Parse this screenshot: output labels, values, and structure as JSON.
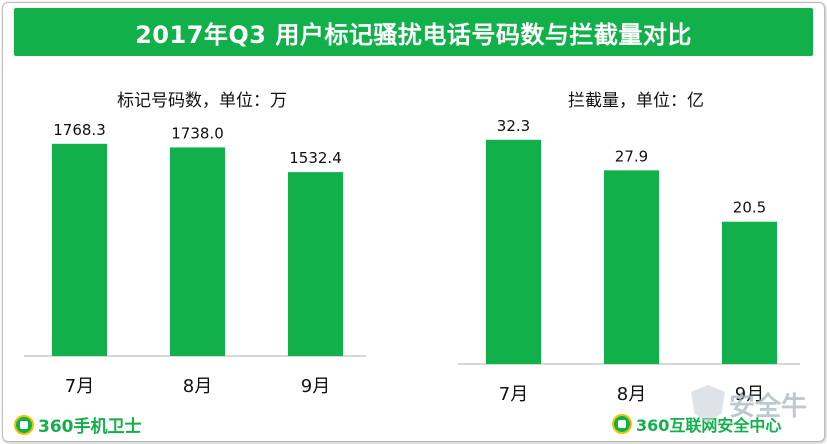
{
  "title": "2017年Q3  用户标记骚扰电话号码数与拦截量对比",
  "chart_data": [
    {
      "type": "bar",
      "title": "标记号码数，单位：万",
      "categories": [
        "7月",
        "8月",
        "9月"
      ],
      "values": [
        1768.3,
        1738.0,
        1532.4
      ],
      "value_labels": [
        "1768.3",
        "1738.0",
        "1532.4"
      ],
      "ylim": [
        0,
        1900
      ],
      "color": "#12b04a"
    },
    {
      "type": "bar",
      "title": "拦截量，单位：亿",
      "categories": [
        "7月",
        "8月",
        "9月"
      ],
      "values": [
        32.3,
        27.9,
        20.5
      ],
      "value_labels": [
        "32.3",
        "27.9",
        "20.5"
      ],
      "ylim": [
        0,
        34
      ],
      "color": "#12b04a"
    }
  ],
  "logos": {
    "left": "360手机卫士",
    "right": "360互联网安全中心"
  },
  "watermark": "安全牛"
}
